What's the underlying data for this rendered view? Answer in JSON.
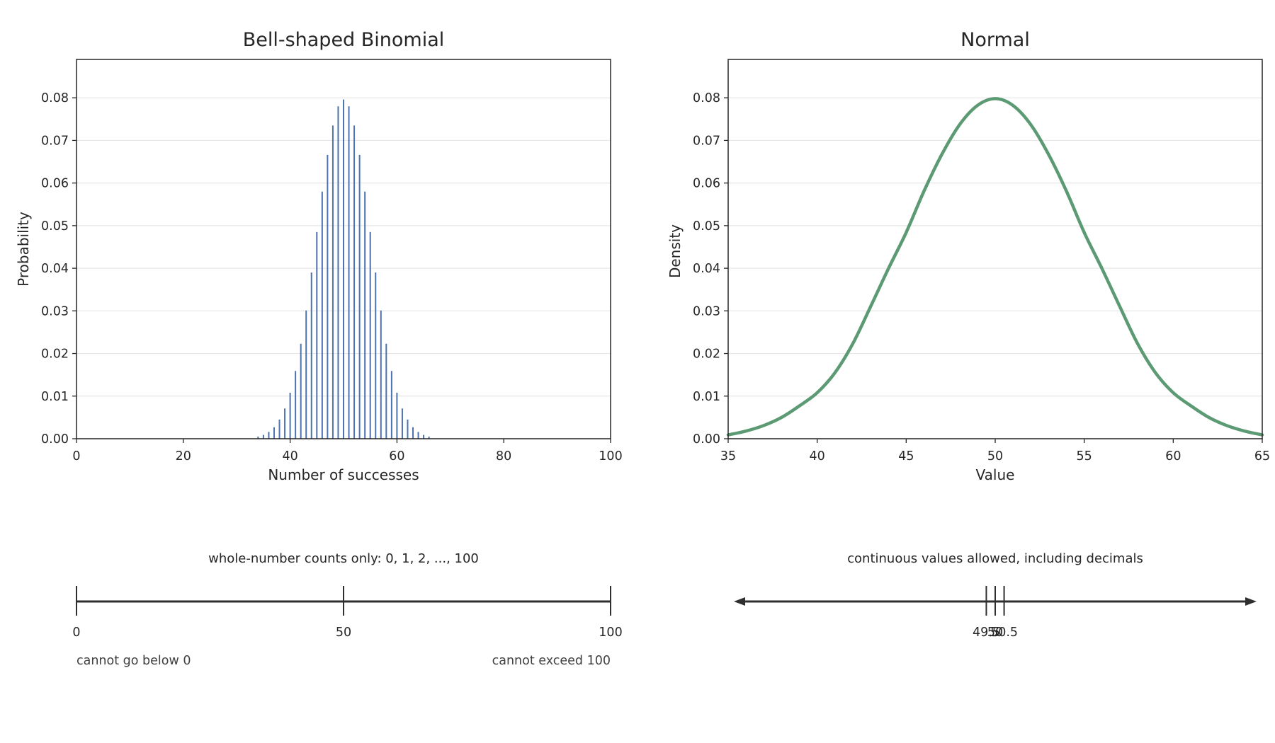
{
  "colors": {
    "binomial": "#4c72b0",
    "normal": "#5b9a73",
    "axis": "#262626",
    "grid": "#e6e6e6",
    "numberline": "#2f2f2f"
  },
  "chart_data": [
    {
      "type": "bar",
      "title": "Bell-shaped Binomial",
      "xlabel": "Number of successes",
      "ylabel": "Probability",
      "xlim": [
        0,
        100
      ],
      "ylim": [
        0,
        0.089
      ],
      "grid": "horizontal",
      "xticks": [
        0,
        20,
        40,
        60,
        80,
        100
      ],
      "xtick_labels": [
        "0",
        "20",
        "40",
        "60",
        "80",
        "100"
      ],
      "yticks": [
        0,
        0.01,
        0.02,
        0.03,
        0.04,
        0.05,
        0.06,
        0.07,
        0.08
      ],
      "ytick_labels": [
        "0.00",
        "0.01",
        "0.02",
        "0.03",
        "0.04",
        "0.05",
        "0.06",
        "0.07",
        "0.08"
      ],
      "x": [
        34,
        35,
        36,
        37,
        38,
        39,
        40,
        41,
        42,
        43,
        44,
        45,
        46,
        47,
        48,
        49,
        50,
        51,
        52,
        53,
        54,
        55,
        56,
        57,
        58,
        59,
        60,
        61,
        62,
        63,
        64,
        65,
        66
      ],
      "values": [
        0.0005,
        0.0009,
        0.0016,
        0.0027,
        0.0045,
        0.0071,
        0.0108,
        0.0159,
        0.0223,
        0.0301,
        0.039,
        0.0485,
        0.058,
        0.0666,
        0.0735,
        0.078,
        0.0796,
        0.078,
        0.0735,
        0.0666,
        0.058,
        0.0485,
        0.039,
        0.0301,
        0.0223,
        0.0159,
        0.0108,
        0.0071,
        0.0045,
        0.0027,
        0.0016,
        0.0009,
        0.0005
      ]
    },
    {
      "type": "line",
      "title": "Normal",
      "xlabel": "Value",
      "ylabel": "Density",
      "xlim": [
        35,
        65
      ],
      "ylim": [
        0,
        0.089
      ],
      "grid": "horizontal",
      "xticks": [
        35,
        40,
        45,
        50,
        55,
        60,
        65
      ],
      "xtick_labels": [
        "35",
        "40",
        "45",
        "50",
        "55",
        "60",
        "65"
      ],
      "yticks": [
        0,
        0.01,
        0.02,
        0.03,
        0.04,
        0.05,
        0.06,
        0.07,
        0.08
      ],
      "ytick_labels": [
        "0.00",
        "0.01",
        "0.02",
        "0.03",
        "0.04",
        "0.05",
        "0.06",
        "0.07",
        "0.08"
      ],
      "series": [
        {
          "x": [
            35,
            36,
            37,
            38,
            39,
            40,
            41,
            42,
            43,
            44,
            45,
            46,
            47,
            48,
            49,
            50,
            51,
            52,
            53,
            54,
            55,
            56,
            57,
            58,
            59,
            60,
            61,
            62,
            63,
            64,
            65
          ],
          "values": [
            0.0009,
            0.0018,
            0.0031,
            0.005,
            0.0077,
            0.0108,
            0.0155,
            0.0223,
            0.031,
            0.0399,
            0.0484,
            0.0581,
            0.0667,
            0.0737,
            0.0782,
            0.0798,
            0.0782,
            0.0737,
            0.0667,
            0.0581,
            0.0484,
            0.0399,
            0.031,
            0.0223,
            0.0155,
            0.0108,
            0.0077,
            0.005,
            0.0031,
            0.0018,
            0.0009
          ]
        }
      ]
    }
  ],
  "number_lines": [
    {
      "caption": "whole-number counts only: 0, 1, 2, ..., 100",
      "range": [
        0,
        100
      ],
      "ticks": [
        0,
        50,
        100
      ],
      "tick_labels": [
        "0",
        "50",
        "100"
      ],
      "left_note": "cannot go below 0",
      "right_note": "cannot exceed 100"
    },
    {
      "caption": "continuous values allowed, including decimals",
      "range": [
        35,
        65
      ],
      "ticks": [
        49.5,
        50,
        50.5
      ],
      "tick_labels": [
        "49.5",
        "50",
        "50.5"
      ],
      "arrows": "both"
    }
  ]
}
